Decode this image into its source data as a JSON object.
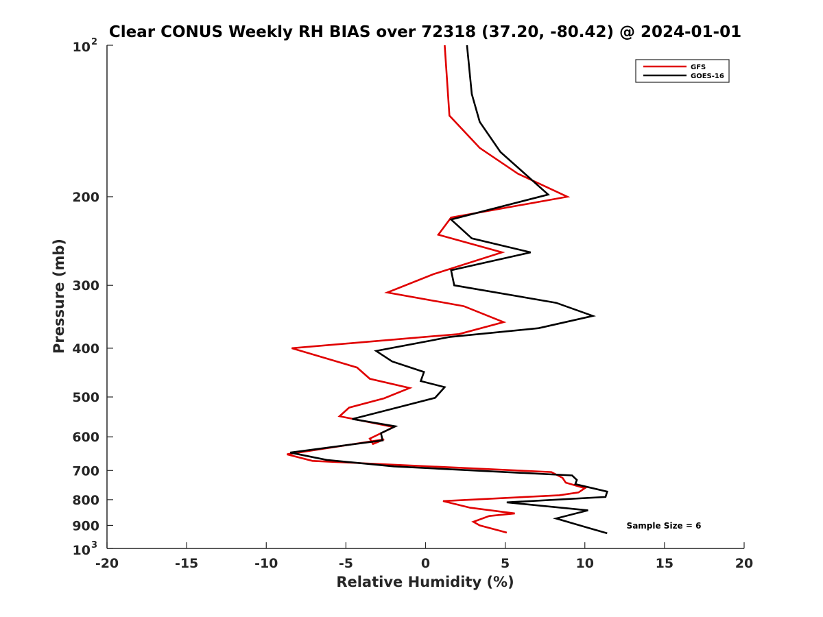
{
  "chart_data": {
    "type": "line",
    "title": "Clear CONUS Weekly RH BIAS over 72318 (37.20, -80.42) @ 2024-01-01",
    "xlabel": "Relative Humidity (%)",
    "ylabel": "Pressure (mb)",
    "xlim": [
      -20,
      20
    ],
    "ylim": [
      100,
      1000
    ],
    "y_scale": "log",
    "y_reversed": true,
    "grid": false,
    "legend_position": "top-right",
    "x_ticks": [
      "-20",
      "-15",
      "-10",
      "-5",
      "0",
      "5",
      "10",
      "15",
      "20"
    ],
    "y_ticks": [
      {
        "value": 100,
        "label": "10",
        "sup": "2"
      },
      {
        "value": 200,
        "label": "200",
        "sup": ""
      },
      {
        "value": 300,
        "label": "300",
        "sup": ""
      },
      {
        "value": 400,
        "label": "400",
        "sup": ""
      },
      {
        "value": 500,
        "label": "500",
        "sup": ""
      },
      {
        "value": 600,
        "label": "600",
        "sup": ""
      },
      {
        "value": 700,
        "label": "700",
        "sup": ""
      },
      {
        "value": 800,
        "label": "800",
        "sup": ""
      },
      {
        "value": 900,
        "label": "900",
        "sup": ""
      },
      {
        "value": 1000,
        "label": "10",
        "sup": "3"
      }
    ],
    "annotation": "Sample Size = 6",
    "series": [
      {
        "name": "GFS",
        "color": "#e00000",
        "x": [
          1.2,
          1.5,
          3.4,
          5.8,
          8.9,
          1.6,
          0.8,
          4.8,
          0.5,
          -2.4,
          2.4,
          4.9,
          2.1,
          -8.4,
          -4.3,
          -3.5,
          -1.0,
          -2.6,
          -4.8,
          -5.4,
          -2.0,
          -3.5,
          -3.3,
          -2.6,
          -8.7,
          -7.1,
          7.9,
          8.6,
          8.8,
          10.0,
          9.6,
          8.4,
          1.1,
          2.8,
          5.6,
          4.0,
          3.0,
          3.4,
          5.1
        ],
        "y": [
          100,
          138,
          160,
          180,
          200,
          220,
          238,
          258,
          285,
          310,
          330,
          355,
          375,
          400,
          437,
          460,
          480,
          503,
          525,
          546,
          574,
          605,
          620,
          607,
          650,
          670,
          705,
          724,
          740,
          759,
          774,
          784,
          805,
          830,
          852,
          862,
          885,
          900,
          930
        ]
      },
      {
        "name": "GOES-16",
        "color": "#000000",
        "x": [
          2.6,
          2.9,
          3.4,
          4.7,
          7.7,
          1.6,
          2.9,
          6.6,
          1.6,
          1.8,
          8.2,
          10.5,
          7.1,
          1.5,
          -3.1,
          -2.1,
          -0.1,
          -0.3,
          1.2,
          0.6,
          -1.8,
          -4.6,
          -1.9,
          -2.8,
          -2.7,
          -8.5,
          -6.2,
          -2.0,
          9.2,
          9.5,
          9.4,
          11.4,
          11.3,
          5.1,
          10.2,
          8.2,
          10.2,
          11.4
        ],
        "y": [
          100,
          125,
          142,
          163,
          198,
          222,
          242,
          258,
          280,
          300,
          325,
          345,
          365,
          380,
          405,
          425,
          446,
          465,
          478,
          502,
          525,
          553,
          572,
          590,
          610,
          645,
          667,
          687,
          716,
          731,
          745,
          771,
          790,
          810,
          840,
          872,
          910,
          933
        ]
      }
    ]
  }
}
